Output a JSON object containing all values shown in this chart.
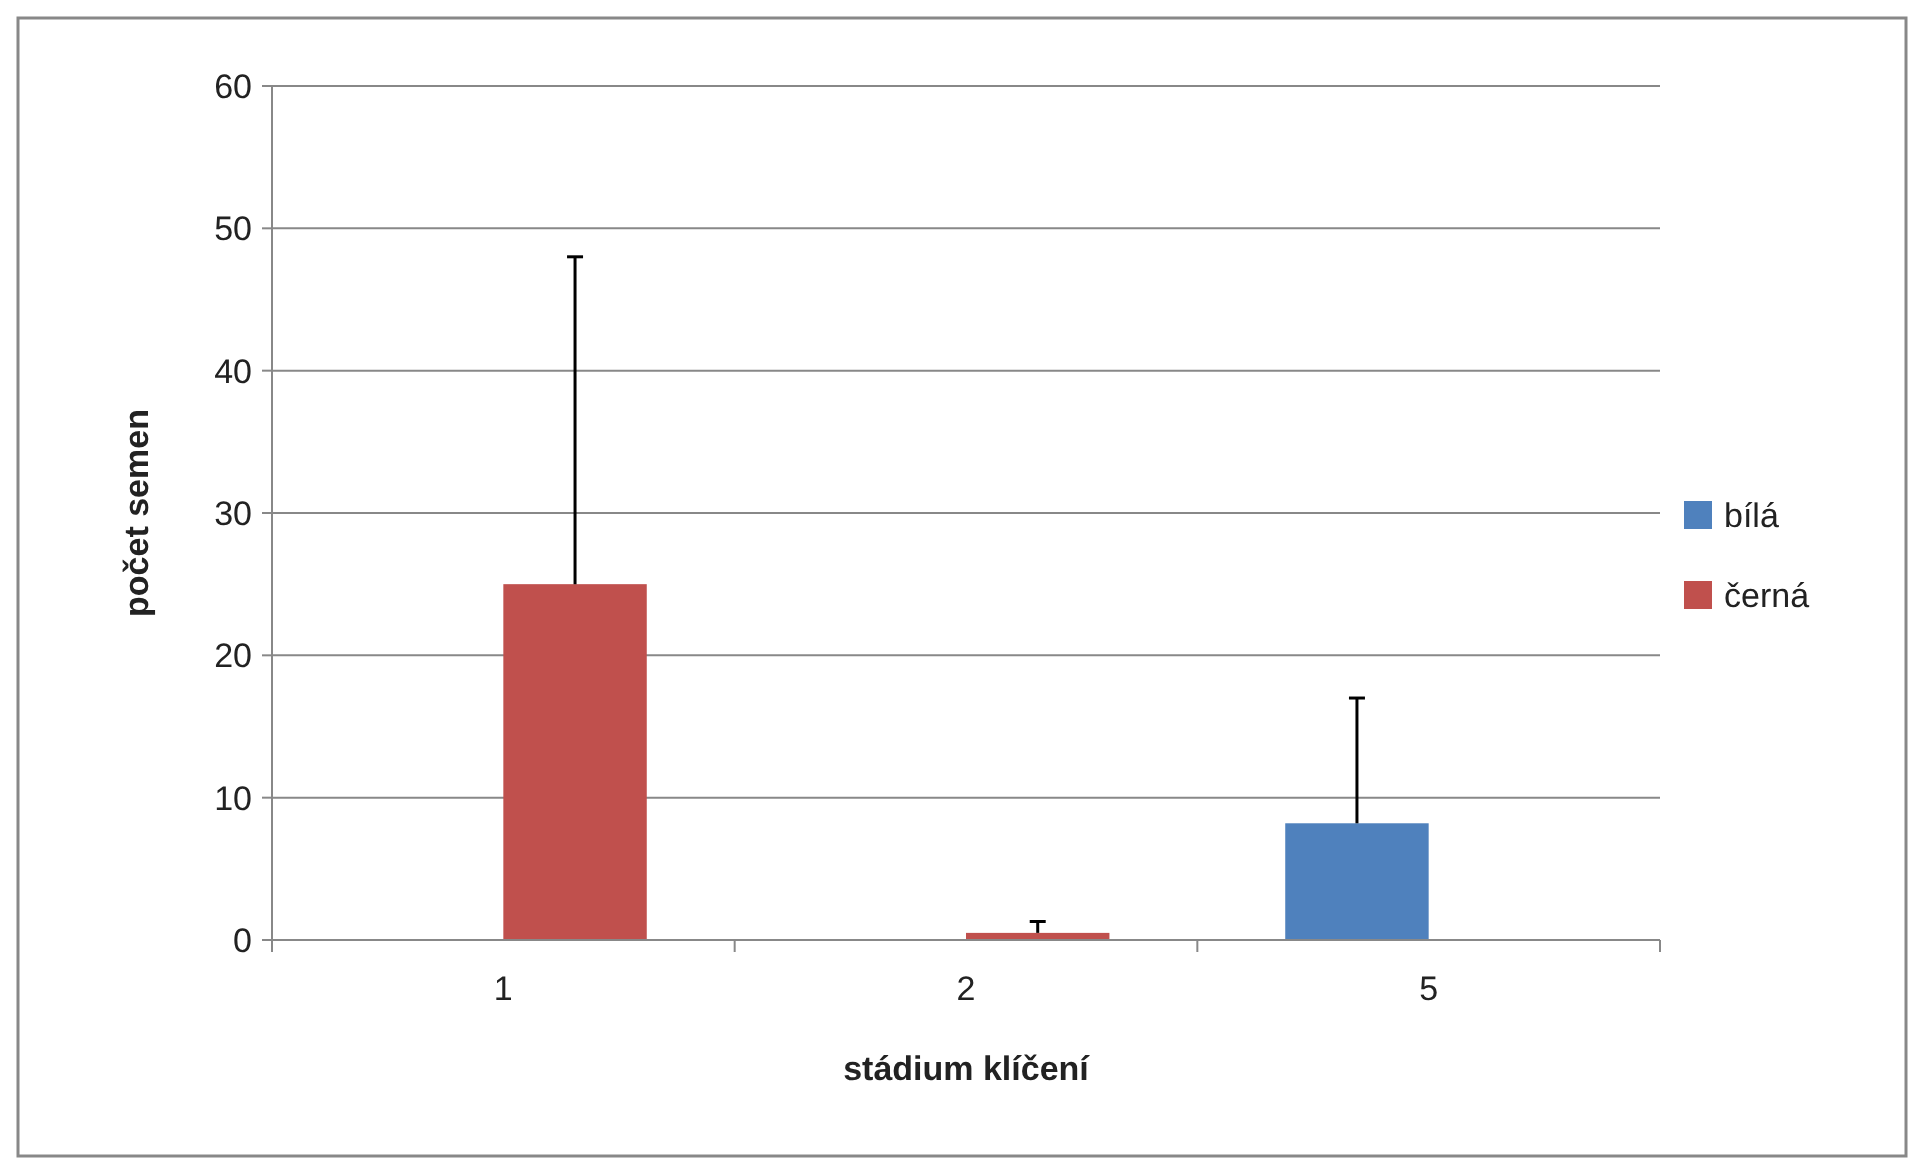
{
  "chart_data": {
    "type": "bar",
    "xlabel": "stádium klíčení",
    "ylabel": "počet semen",
    "categories": [
      "1",
      "2",
      "5"
    ],
    "series": [
      {
        "name": "bílá",
        "color": "#4f81bd",
        "values": [
          0,
          0,
          8.2
        ],
        "errors": [
          null,
          null,
          [
            8.2,
            17
          ]
        ]
      },
      {
        "name": "černá",
        "color": "#c0504d",
        "values": [
          25,
          0.5,
          0
        ],
        "errors": [
          [
            25,
            48
          ],
          [
            0.5,
            1.3
          ],
          null
        ]
      }
    ],
    "ylim": [
      0,
      60
    ],
    "yticks": [
      0,
      10,
      20,
      30,
      40,
      50,
      60
    ],
    "grid": "y",
    "legend": "right"
  }
}
